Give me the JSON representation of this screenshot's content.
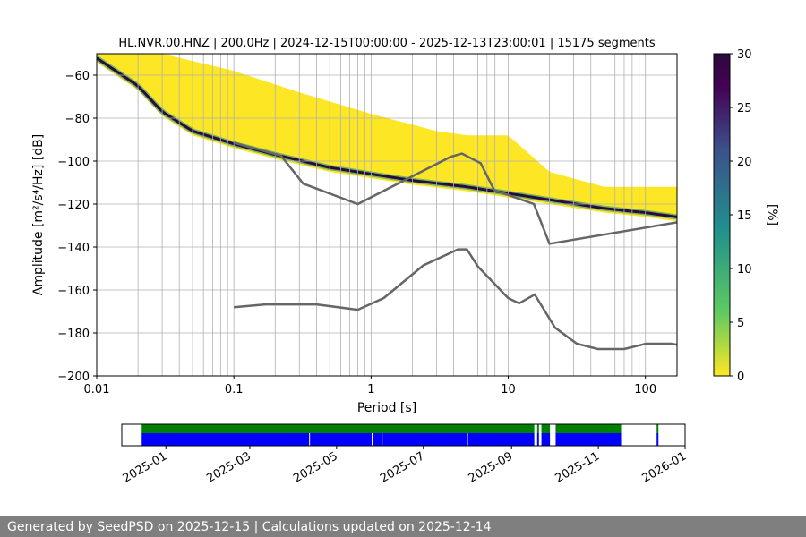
{
  "chart_data": [
    {
      "type": "heatmap",
      "title": "HL.NVR.00.HNZ | 200.0Hz | 2024-12-15T00:00:00 - 2025-12-13T23:00:01 | 15175 segments",
      "xlabel": "Period [s]",
      "ylabel": "Amplitude [m²/s⁴/Hz] [dB]",
      "x_scale": "log",
      "xlim": [
        0.01,
        170
      ],
      "ylim": [
        -200,
        -50
      ],
      "x_ticks": [
        "0.01",
        "0.1",
        "1",
        "10",
        "100"
      ],
      "y_ticks": [
        "−60",
        "−80",
        "−100",
        "−120",
        "−140",
        "−160",
        "−180",
        "−200"
      ],
      "grid": true,
      "colorbar": {
        "label": "[%]",
        "range": [
          0,
          30
        ],
        "ticks": [
          "0",
          "5",
          "10",
          "15",
          "20",
          "25",
          "30"
        ],
        "colors": [
          "#fde725",
          "#5ec962",
          "#21918c",
          "#3b528b",
          "#440154",
          "#2a0b3b"
        ]
      },
      "mode_curve": {
        "period": [
          0.01,
          0.02,
          0.03,
          0.05,
          0.1,
          0.2,
          0.5,
          1,
          2,
          5,
          10,
          20,
          50,
          100,
          170
        ],
        "db": [
          -52,
          -65,
          -77,
          -86,
          -92,
          -97,
          -103,
          -106,
          -109,
          -112,
          -115,
          -118,
          -122,
          -124,
          -126
        ]
      },
      "band_upper": {
        "period": [
          0.01,
          0.03,
          0.1,
          0.3,
          1,
          3,
          5,
          10,
          20,
          50,
          170
        ],
        "db": [
          -50,
          -50,
          -58,
          -68,
          -78,
          -86,
          -88,
          -88,
          -105,
          -112,
          -112
        ]
      },
      "nhnm": {
        "period": [
          0.1,
          0.22,
          0.32,
          0.8,
          3.8,
          4.6,
          6.3,
          7.9,
          15.4,
          20,
          170
        ],
        "db": [
          -91.5,
          -97.4,
          -110.5,
          -120,
          -98,
          -96.5,
          -101,
          -113.5,
          -120,
          -138.5,
          -128.5
        ]
      },
      "nlnm": {
        "period": [
          0.1,
          0.17,
          0.4,
          0.8,
          1.24,
          2.4,
          4.3,
          5,
          6,
          10,
          12,
          15.6,
          21.9,
          31.6,
          45,
          70,
          101,
          154,
          170
        ],
        "db": [
          -168,
          -166.7,
          -166.7,
          -169.2,
          -163.7,
          -148.6,
          -141.1,
          -141.1,
          -149,
          -163.8,
          -166.2,
          -162.1,
          -177.5,
          -185,
          -187.5,
          -187.5,
          -185,
          -185,
          -185.5
        ]
      }
    },
    {
      "type": "timeline",
      "x_ticks": [
        "2025-01",
        "2025-03",
        "2025-05",
        "2025-07",
        "2025-09",
        "2025-11",
        "2026-01"
      ],
      "series": [
        {
          "color": "#008000",
          "segments": [
            [
              "2024-12-15",
              "2025-09-17"
            ],
            [
              "2025-09-19",
              "2025-09-20"
            ],
            [
              "2025-09-22",
              "2025-09-28"
            ],
            [
              "2025-10-02",
              "2025-11-17"
            ],
            [
              "2025-12-12",
              "2025-12-13"
            ]
          ]
        },
        {
          "color": "#0000ff",
          "segments": [
            [
              "2024-12-15",
              "2025-09-17"
            ],
            [
              "2025-09-19",
              "2025-09-20"
            ],
            [
              "2025-09-22",
              "2025-09-28"
            ],
            [
              "2025-10-02",
              "2025-11-17"
            ],
            [
              "2025-12-12",
              "2025-12-13"
            ]
          ]
        }
      ],
      "blue_gaps": [
        "2025-04-12",
        "2025-05-26",
        "2025-06-02",
        "2025-08-01"
      ]
    }
  ],
  "footer": "Generated by SeedPSD on 2025-12-15 | Calculations updated on 2025-12-14"
}
